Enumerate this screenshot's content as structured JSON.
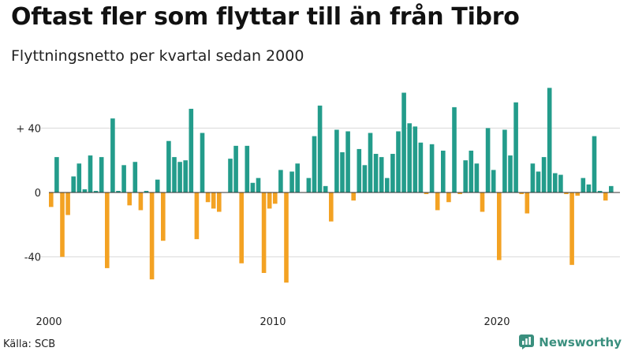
{
  "header": {
    "title": "Oftast fler som flyttar till än från Tibro",
    "subtitle": "Flyttningsnetto per kvartal sedan 2000"
  },
  "footer": {
    "source": "Källa: SCB",
    "brand": "Newsworthy"
  },
  "colors": {
    "positive": "#239c8b",
    "negative": "#f3a223",
    "grid": "#d9d9d9",
    "logo": "#3a8f7e"
  },
  "icons": {
    "logo": "newsworthy-chart-icon"
  },
  "chart_data": {
    "type": "bar",
    "title": "Oftast fler som flyttar till än från Tibro",
    "subtitle": "Flyttningsnetto per kvartal sedan 2000",
    "xlabel": "",
    "ylabel": "",
    "ylim": [
      -62,
      62
    ],
    "y_ticks": [
      40,
      0,
      -40
    ],
    "y_tick_labels": [
      "+ 40",
      "0",
      "-40"
    ],
    "x_tick_labels": [
      "2000",
      "2010",
      "2020"
    ],
    "x_tick_years": [
      2000,
      2010,
      2020
    ],
    "start_year": 2000,
    "period": "quarter",
    "grid": true,
    "values": [
      -9,
      22,
      -40,
      -14,
      10,
      18,
      2,
      23,
      1,
      22,
      -47,
      46,
      1,
      17,
      -8,
      19,
      -11,
      1,
      -54,
      8,
      -30,
      32,
      22,
      19,
      20,
      52,
      -29,
      37,
      -6,
      -10,
      -12,
      0,
      21,
      29,
      -44,
      29,
      6,
      9,
      -50,
      -10,
      -7,
      14,
      -56,
      13,
      18,
      0,
      9,
      35,
      54,
      4,
      -18,
      39,
      25,
      38,
      -5,
      27,
      17,
      37,
      24,
      22,
      9,
      24,
      38,
      62,
      43,
      41,
      31,
      -1,
      30,
      -11,
      26,
      -6,
      53,
      -1,
      20,
      26,
      18,
      -12,
      40,
      14,
      -42,
      39,
      23,
      56,
      -1,
      -13,
      18,
      13,
      22,
      65,
      12,
      11,
      -1,
      -45,
      -2,
      9,
      5,
      35,
      1,
      -5,
      4
    ]
  }
}
